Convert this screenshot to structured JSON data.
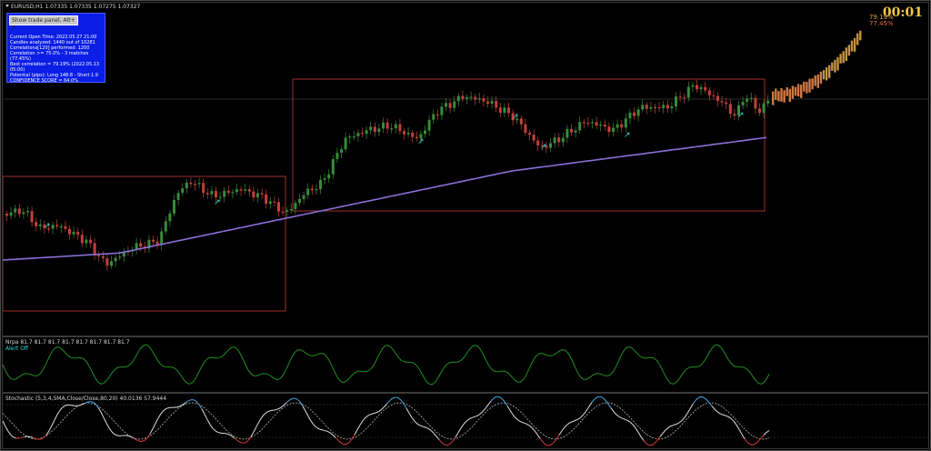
{
  "chart_header": {
    "symbol": "EURUSD,H1",
    "prices": "1.07335 1.07335 1.07275 1.07327"
  },
  "trade_panel": {
    "button_label": "Show trade panel, Alt+ T",
    "lines": [
      "Current Open Time: 2022.05.27 21:00",
      "Candles analyzed: 1440 out of 10281",
      "Correlations[120] performed: 1200",
      "Correlation >= 75.0% - 3 matches (77.45%)",
      "Best correlation = 79.19% (2022.05.13 05:00)",
      "Potential (pips): Long 148.8 - Short 1.9",
      "CONFIDENCE SCORE = 64.0%"
    ]
  },
  "countdown": "00:01",
  "forecast": {
    "best": "79.19%",
    "avg": "77.45%",
    "best_color": "#d9a24a",
    "avg_color": "#e06a3a"
  },
  "indicator_nrp": {
    "title": "Nrpa 81.7 81.7 81.7 81.7 81.7 81.7 81.7 81.7",
    "subtitle": "Alert Off",
    "line_color": "#1f8f1f"
  },
  "indicator_stoch": {
    "title": "Stochastic (5,3,4,SMA,Close/Close,80,20) 40.0136 57.9444"
  },
  "colors": {
    "bull": "#3a8a3a",
    "bear": "#c4403a",
    "ma": "#8a6fd8",
    "box": "#a0302a",
    "forecast": "#e8864a",
    "arrow": "#33d6d6"
  }
}
